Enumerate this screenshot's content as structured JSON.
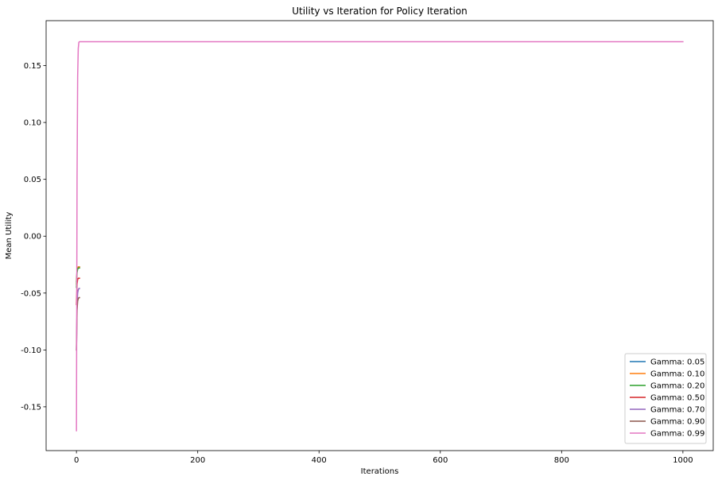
{
  "chart_data": {
    "type": "line",
    "title": "Utility vs Iteration for Policy Iteration",
    "xlabel": "Iterations",
    "ylabel": "Mean Utility",
    "xlim": [
      -50,
      1050
    ],
    "ylim": [
      -0.1885,
      0.1895
    ],
    "xticks": [
      0,
      200,
      400,
      600,
      800,
      1000
    ],
    "yticks": [
      -0.15,
      -0.1,
      -0.05,
      0.0,
      0.05,
      0.1,
      0.15
    ],
    "ytick_labels": [
      "-0.15",
      "-0.10",
      "-0.05",
      "0.00",
      "0.05",
      "0.10",
      "0.15"
    ],
    "grid": false,
    "legend_position": "lower-right",
    "series": [
      {
        "name": "Gamma: 0.05",
        "color": "#1f77b4",
        "x": [
          0,
          1,
          2,
          3,
          4,
          5
        ],
        "y": [
          -0.04,
          -0.03,
          -0.028,
          -0.027,
          -0.027,
          -0.027
        ]
      },
      {
        "name": "Gamma: 0.10",
        "color": "#ff7f0e",
        "x": [
          0,
          1,
          2,
          3,
          4,
          5
        ],
        "y": [
          -0.042,
          -0.03,
          -0.028,
          -0.027,
          -0.027,
          -0.027
        ]
      },
      {
        "name": "Gamma: 0.20",
        "color": "#2ca02c",
        "x": [
          0,
          1,
          2,
          3,
          4,
          5
        ],
        "y": [
          -0.045,
          -0.032,
          -0.029,
          -0.028,
          -0.028,
          -0.028
        ]
      },
      {
        "name": "Gamma: 0.50",
        "color": "#d62728",
        "x": [
          0,
          1,
          2,
          3,
          4,
          5
        ],
        "y": [
          -0.06,
          -0.042,
          -0.038,
          -0.037,
          -0.037,
          -0.037
        ]
      },
      {
        "name": "Gamma: 0.70",
        "color": "#9467bd",
        "x": [
          0,
          1,
          2,
          3,
          4,
          5
        ],
        "y": [
          -0.1,
          -0.06,
          -0.05,
          -0.047,
          -0.046,
          -0.046
        ]
      },
      {
        "name": "Gamma: 0.90",
        "color": "#8c564b",
        "x": [
          0,
          1,
          2,
          3,
          4,
          5
        ],
        "y": [
          -0.1,
          -0.065,
          -0.057,
          -0.055,
          -0.054,
          -0.054
        ]
      },
      {
        "name": "Gamma: 0.99",
        "color": "#e377c2",
        "x": [
          0,
          1,
          2,
          3,
          4,
          5,
          6,
          1000
        ],
        "y": [
          -0.171,
          0.05,
          0.14,
          0.165,
          0.1705,
          0.171,
          0.171,
          0.171
        ]
      }
    ]
  }
}
